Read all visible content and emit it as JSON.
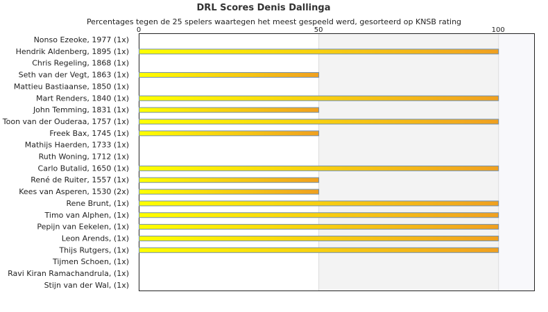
{
  "chart_data": {
    "type": "bar",
    "orientation": "horizontal",
    "title": "DRL Scores Denis Dallinga",
    "subtitle": "Percentages tegen de 25 spelers waartegen het meest gespeeld werd, gesorteerd op KNSB rating",
    "xlim": [
      0,
      110
    ],
    "xticks": [
      0,
      50,
      100
    ],
    "grid": "vertical bands",
    "categories": [
      "Nonso Ezeoke, 1977 (1x)",
      "Hendrik Aldenberg, 1895 (1x)",
      "Chris Regeling, 1868 (1x)",
      "Seth van der Vegt, 1863 (1x)",
      "Mattieu Bastiaanse, 1850 (1x)",
      "Mart Renders, 1840 (1x)",
      "John Temming, 1831 (1x)",
      "Toon van der Ouderaa, 1757 (1x)",
      "Freek Bax, 1745 (1x)",
      "Mathijs Haerden, 1733 (1x)",
      "Ruth Woning, 1712 (1x)",
      "Carlo Butalid, 1650 (1x)",
      "René de Ruiter, 1557 (1x)",
      "Kees van Asperen, 1530 (2x)",
      "Rene Brunt,  (1x)",
      "Timo van Alphen,  (1x)",
      "Pepijn van Eekelen,  (1x)",
      "Leon Arends,  (1x)",
      "Thijs Rutgers,  (1x)",
      "Tijmen Schoen,  (1x)",
      "Ravi Kiran Ramachandrula,  (1x)",
      "Stijn van der Wal,  (1x)"
    ],
    "values": [
      0,
      100,
      0,
      50,
      0,
      100,
      50,
      100,
      50,
      0,
      0,
      100,
      50,
      50,
      100,
      100,
      100,
      100,
      100,
      0,
      0,
      0
    ],
    "colors": {
      "bar_start": "#ffff00",
      "bar_end": "#f0a020",
      "bar_border": "#6f8fb0",
      "band_light": "#f3f3f3",
      "band_lighter": "#f8f8fb",
      "frame": "#222222"
    }
  }
}
